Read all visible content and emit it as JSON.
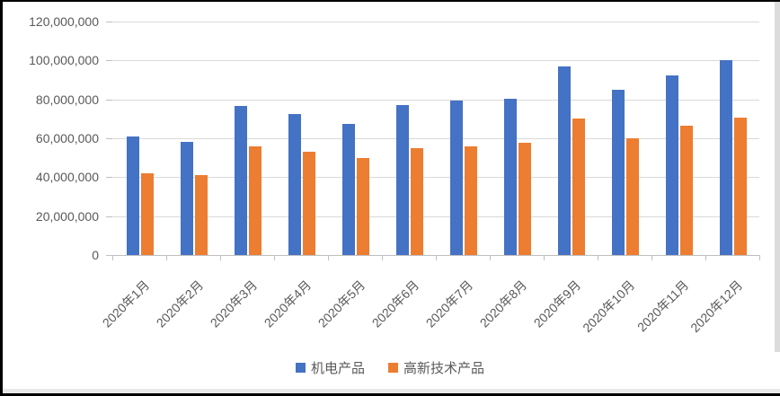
{
  "chart_data": {
    "type": "bar",
    "title": "",
    "categories": [
      "2020年1月",
      "2020年2月",
      "2020年3月",
      "2020年4月",
      "2020年5月",
      "2020年6月",
      "2020年7月",
      "2020年8月",
      "2020年9月",
      "2020年10月",
      "2020年11月",
      "2020年12月"
    ],
    "series": [
      {
        "name": "机电产品",
        "color": "#4472C4",
        "values": [
          61000000,
          58000000,
          76500000,
          72500000,
          67500000,
          77000000,
          79500000,
          80500000,
          97000000,
          85000000,
          92500000,
          100000000
        ]
      },
      {
        "name": "高新技术产品",
        "color": "#ED7D31",
        "values": [
          42000000,
          41000000,
          56000000,
          53000000,
          50000000,
          55000000,
          56000000,
          57500000,
          70000000,
          60000000,
          66500000,
          70500000
        ]
      }
    ],
    "y_axis": {
      "min": 0,
      "max": 120000000,
      "step": 20000000,
      "tick_labels": [
        "0",
        "20,000,000",
        "40,000,000",
        "60,000,000",
        "80,000,000",
        "100,000,000",
        "120,000,000"
      ]
    },
    "x_axis": {
      "label_rotation_degrees": -45
    },
    "grid": true,
    "legend_position": "bottom",
    "colors": {
      "gridline": "#D9D9D9",
      "axis_line": "#BFBFBF",
      "axis_text": "#595959"
    }
  }
}
